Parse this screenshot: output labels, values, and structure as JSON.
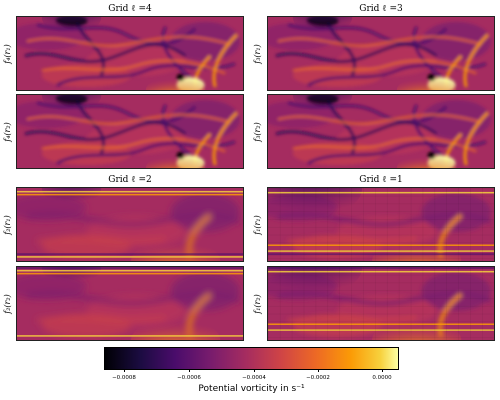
{
  "panels": [
    {
      "title": "Grid ℓ =4",
      "labels": [
        "f₄(r₁)",
        "f₄(r₂)"
      ]
    },
    {
      "title": "Grid ℓ =3",
      "labels": [
        "f₃(r₁)",
        "f₃(r₂)"
      ]
    },
    {
      "title": "Grid ℓ =2",
      "labels": [
        "f₂(r₁)",
        "f₂(r₂)"
      ]
    },
    {
      "title": "Grid ℓ =1",
      "labels": [
        "f₁(r₁)",
        "f₁(r₂)"
      ]
    }
  ],
  "colorbar": {
    "label": "Potential vorticity in s⁻¹",
    "ticks": [
      "−0.0008",
      "−0.0006",
      "−0.0004",
      "−0.0002",
      "0.0000"
    ],
    "colormap": "inferno"
  },
  "colors": {
    "dark": "#1b0c41",
    "mid": "#a52c60",
    "bright": "#fcffa4"
  }
}
